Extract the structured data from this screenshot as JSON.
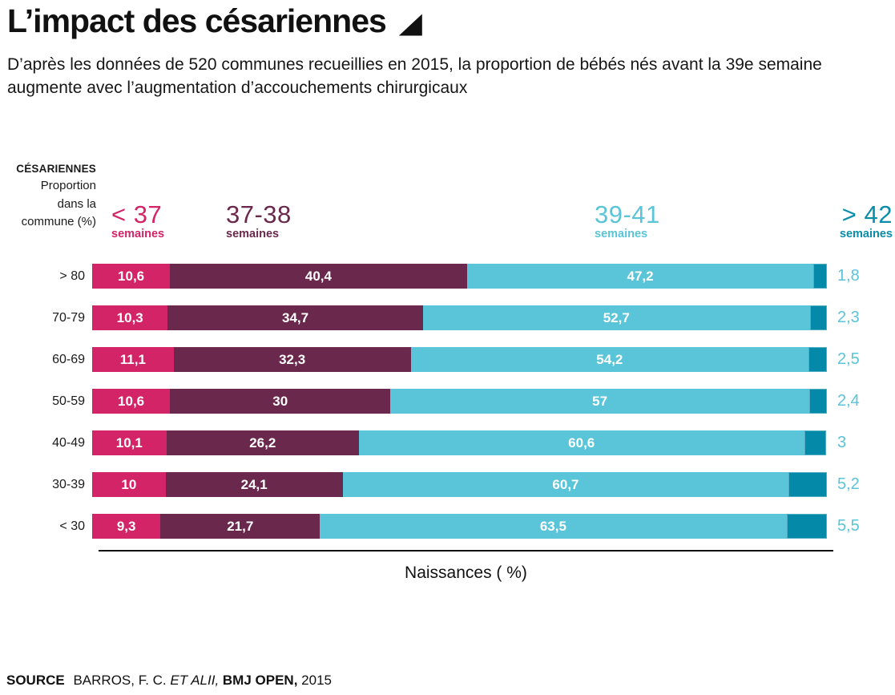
{
  "title": "L’impact des césariennes",
  "subtitle_line1": "D’après les données de 520 communes recueillies en 2015, la proportion de bébés nés avant la 39e",
  "subtitle_line2": "semaine augmente avec l’augmentation d’accouchements chirurgicaux",
  "axis": {
    "y_title": "CÉSARIENNES",
    "y_lines": [
      "Proportion",
      "dans la",
      "commune (%)"
    ],
    "x_label": "Naissances ( %)"
  },
  "legend": [
    {
      "label": "< 37",
      "sub": "semaines",
      "color": "#d22466"
    },
    {
      "label": "37-38",
      "sub": "semaines",
      "color": "#6a294c"
    },
    {
      "label": "39-41",
      "sub": "semaines",
      "color": "#5ac4d8"
    },
    {
      "label": "> 42",
      "sub": "semaines",
      "color": "#0a8dab"
    }
  ],
  "chart_data": {
    "type": "bar",
    "stacked": true,
    "orientation": "horizontal",
    "title": "L’impact des césariennes",
    "xlabel": "Naissances ( %)",
    "ylabel": "CÉSARIENNES Proportion dans la commune (%)",
    "xlim": [
      0,
      100
    ],
    "legend_position": "top",
    "grid": false,
    "outside_label_color": "#5ac4d8",
    "categories": [
      "> 80",
      "70-79",
      "60-69",
      "50-59",
      "40-49",
      "30-39",
      "< 30"
    ],
    "series": [
      {
        "name": "< 37 semaines",
        "color": "#d22466",
        "values": [
          10.6,
          10.3,
          11.1,
          10.6,
          10.1,
          10,
          9.3
        ],
        "labels": [
          "10,6",
          "10,3",
          "11,1",
          "10,6",
          "10,1",
          "10",
          "9,3"
        ]
      },
      {
        "name": "37-38 semaines",
        "color": "#6a294c",
        "values": [
          40.4,
          34.7,
          32.3,
          30,
          26.2,
          24.1,
          21.7
        ],
        "labels": [
          "40,4",
          "34,7",
          "32,3",
          "30",
          "26,2",
          "24,1",
          "21,7"
        ]
      },
      {
        "name": "39-41 semaines",
        "color": "#5ac4d8",
        "values": [
          47.2,
          52.7,
          54.2,
          57,
          60.6,
          60.7,
          63.5
        ],
        "labels": [
          "47,2",
          "52,7",
          "54,2",
          "57",
          "60,6",
          "60,7",
          "63,5"
        ]
      },
      {
        "name": "> 42 semaines",
        "color": "#0489a8",
        "values": [
          1.8,
          2.3,
          2.5,
          2.4,
          3,
          5.2,
          5.5
        ],
        "labels": [
          "1,8",
          "2,3",
          "2,5",
          "2,4",
          "3",
          "5,2",
          "5,5"
        ],
        "label_outside": true
      }
    ]
  },
  "source": {
    "label": "SOURCE",
    "authors": "BARROS, F. C.",
    "etal": "ET ALII,",
    "journal": "BMJ OPEN,",
    "year": "2015"
  }
}
